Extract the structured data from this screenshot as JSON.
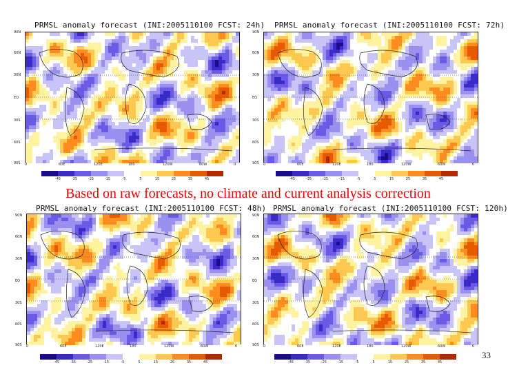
{
  "caption": "Based on raw forecasts, no climate and current analysis correction",
  "page_number": "33",
  "panels": [
    {
      "title": "PRMSL anomaly forecast (INI:2005110100 FCST: 24h)"
    },
    {
      "title": "PRMSL anomaly forecast (INI:2005110100 FCST: 72h)"
    },
    {
      "title": "PRMSL anomaly forecast (INI:2005110100 FCST: 48h)"
    },
    {
      "title": "PRMSL anomaly forecast (INI:2005110100 FCST: 120h)"
    }
  ],
  "colorbar": {
    "ticks": [
      "-45",
      "-35",
      "-25",
      "-15",
      "-5",
      "5",
      "15",
      "25",
      "35",
      "45"
    ],
    "colors": [
      "#1a0a8c",
      "#3a2ac8",
      "#6a5ae6",
      "#9a90f0",
      "#c8c4f8",
      "#ffffff",
      "#fff2a0",
      "#ffc850",
      "#ff8c1e",
      "#e65a00",
      "#b42800"
    ]
  },
  "lat_labels": [
    "90N",
    "60N",
    "30N",
    "EQ",
    "30S",
    "60S",
    "90S"
  ],
  "lon_labels": [
    "0",
    "60E",
    "120E",
    "180",
    "120W",
    "60W",
    "0"
  ]
}
